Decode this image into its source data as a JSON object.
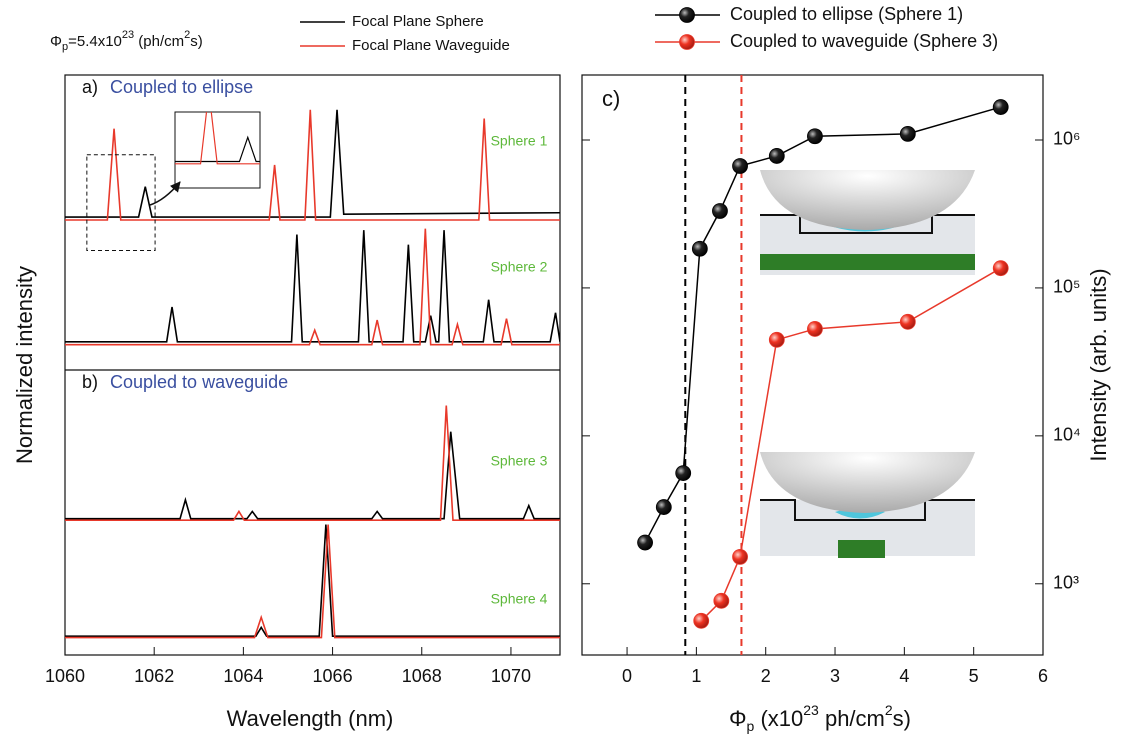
{
  "chart_data": [
    {
      "type": "line",
      "pump_label": {
        "symbol": "Φ",
        "sub": "p",
        "text": "=5.4x10",
        "sup": "23",
        "unit": " (ph/cm",
        "unit_sup": "2",
        "unit_end": "s)"
      },
      "panels": [
        {
          "letter": "a)",
          "title": "Coupled to ellipse"
        },
        {
          "letter": "b)",
          "title": "Coupled to waveguide"
        }
      ],
      "spectrum_labels": [
        "Sphere 1",
        "Sphere 2",
        "Sphere 3",
        "Sphere 4"
      ],
      "xlabel": "Wavelength (nm)",
      "ylabel": "Normalized intensity",
      "xlim": [
        1060,
        1071.1
      ],
      "ylim": [
        0,
        4
      ],
      "xticks": [
        1060,
        1062,
        1064,
        1066,
        1068,
        1070
      ],
      "inset": {
        "xlim": [
          1060.49,
          1062.02
        ],
        "ylim": [
          2.79,
          3.45
        ]
      },
      "series": [
        {
          "name": "Focal Plane Sphere",
          "color": "#000000",
          "spectra": [
            {
              "x": [
                1060,
                1061.65,
                1061.8,
                1061.95,
                1065.95,
                1066.1,
                1066.25,
                1071.1
              ],
              "values": [
                3.02,
                3.02,
                3.23,
                3.02,
                3.02,
                3.76,
                3.04,
                3.05
              ]
            },
            {
              "x": [
                1060,
                1062.28,
                1062.4,
                1062.52,
                1065.08,
                1065.2,
                1065.32,
                1066.58,
                1066.7,
                1066.82,
                1067.58,
                1067.7,
                1067.82,
                1068.08,
                1068.2,
                1068.32,
                1068.38,
                1068.5,
                1068.62,
                1069.38,
                1069.5,
                1069.62,
                1070.88,
                1071.0,
                1071.1
              ],
              "values": [
                2.16,
                2.16,
                2.4,
                2.16,
                2.16,
                2.9,
                2.16,
                2.16,
                2.93,
                2.16,
                2.16,
                2.83,
                2.16,
                2.16,
                2.34,
                2.16,
                2.16,
                2.93,
                2.16,
                2.16,
                2.45,
                2.16,
                2.16,
                2.36,
                2.16
              ]
            },
            {
              "x": [
                1060,
                1062.58,
                1062.7,
                1062.82,
                1064.08,
                1064.2,
                1064.32,
                1066.88,
                1067.0,
                1067.12,
                1068.5,
                1068.65,
                1068.85,
                1070.28,
                1070.4,
                1070.52,
                1071.1
              ],
              "values": [
                0.94,
                0.94,
                1.07,
                0.94,
                0.94,
                0.99,
                0.94,
                0.94,
                0.99,
                0.94,
                0.94,
                1.54,
                0.94,
                0.94,
                1.03,
                0.94,
                0.94
              ]
            },
            {
              "x": [
                1060,
                1064.28,
                1064.4,
                1064.52,
                1065.7,
                1065.85,
                1066.0,
                1071.1
              ],
              "values": [
                0.13,
                0.13,
                0.19,
                0.13,
                0.13,
                0.9,
                0.13,
                0.13
              ]
            }
          ]
        },
        {
          "name": "Focal Plane Waveguide",
          "color": "#e8392b",
          "spectra": [
            {
              "x": [
                1060,
                1060.95,
                1061.1,
                1061.25,
                1064.58,
                1064.7,
                1064.82,
                1065.38,
                1065.5,
                1065.62,
                1069.28,
                1069.4,
                1069.52,
                1071.1
              ],
              "values": [
                3.0,
                3.0,
                3.63,
                3.0,
                3.0,
                3.38,
                3.0,
                3.0,
                3.76,
                3.0,
                3.0,
                3.7,
                3.0,
                3.0
              ]
            },
            {
              "x": [
                1060,
                1065.48,
                1065.6,
                1065.72,
                1066.88,
                1067.0,
                1067.12,
                1067.96,
                1068.08,
                1068.2,
                1068.68,
                1068.8,
                1068.92,
                1069.78,
                1069.9,
                1070.02,
                1071.1
              ],
              "values": [
                2.14,
                2.14,
                2.24,
                2.14,
                2.14,
                2.31,
                2.14,
                2.14,
                2.94,
                2.14,
                2.14,
                2.28,
                2.14,
                2.14,
                2.32,
                2.14,
                2.14
              ]
            },
            {
              "x": [
                1060,
                1063.78,
                1063.9,
                1064.02,
                1068.42,
                1068.55,
                1068.7,
                1071.1
              ],
              "values": [
                0.93,
                0.93,
                0.99,
                0.93,
                0.93,
                1.72,
                0.93,
                0.93
              ]
            },
            {
              "x": [
                1060,
                1064.25,
                1064.4,
                1064.55,
                1065.75,
                1065.9,
                1066.05,
                1071.1
              ],
              "values": [
                0.12,
                0.12,
                0.26,
                0.12,
                0.12,
                0.9,
                0.12,
                0.12
              ]
            }
          ]
        }
      ]
    },
    {
      "type": "scatter",
      "panel": "c)",
      "log_y": true,
      "xlabel": {
        "symbol": "Φ",
        "sub": "p",
        "text": " (x10",
        "sup": "23",
        "unit": " ph/cm",
        "unit_sup": "2",
        "unit_end": "s)"
      },
      "ylabel": "Intensity (arb. units)",
      "xlim": [
        -0.65,
        6
      ],
      "xticks": [
        0,
        1,
        2,
        3,
        4,
        5,
        6
      ],
      "ylim": [
        330,
        2750000
      ],
      "yticks": [
        {
          "value": 1000,
          "label": "10³"
        },
        {
          "value": 10000,
          "label": "10⁴"
        },
        {
          "value": 100000,
          "label": "10⁵"
        },
        {
          "value": 1000000,
          "label": "10⁶"
        }
      ],
      "vlines": [
        {
          "x": 0.84,
          "color": "#000000"
        },
        {
          "x": 1.65,
          "color": "#e8392b"
        }
      ],
      "series": [
        {
          "name": "Coupled to ellipse (Sphere 1)",
          "color": "#000000",
          "x": [
            0.26,
            0.53,
            0.81,
            1.05,
            1.34,
            1.63,
            2.16,
            2.71,
            4.05,
            5.39
          ],
          "values": [
            1900,
            3300,
            5600,
            184000,
            331000,
            667000,
            780000,
            1060000,
            1100000,
            1670000
          ]
        },
        {
          "name": "Coupled to waveguide (Sphere 3)",
          "color": "#e8392b",
          "x": [
            1.07,
            1.36,
            1.63,
            2.16,
            2.71,
            4.05,
            5.39
          ],
          "values": [
            562,
            767,
            1520,
            44600,
            52800,
            59000,
            136000
          ]
        }
      ]
    }
  ]
}
